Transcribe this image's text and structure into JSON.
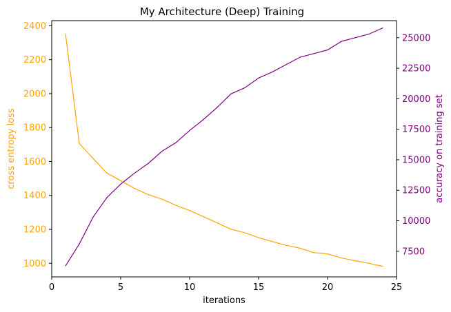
{
  "chart_data": {
    "type": "line",
    "title": "My Architecture (Deep) Training",
    "xlabel": "iterations",
    "ylabel_left": "cross entropy loss",
    "ylabel_right": "accuracy on training set",
    "xlim": [
      0,
      25
    ],
    "ylim_left": [
      920,
      2430
    ],
    "ylim_right": [
      5400,
      26400
    ],
    "xticks": [
      0,
      5,
      10,
      15,
      20,
      25
    ],
    "yticks_left": [
      1000,
      1200,
      1400,
      1600,
      1800,
      2000,
      2200,
      2400
    ],
    "yticks_right": [
      7500,
      10000,
      12500,
      15000,
      17500,
      20000,
      22500,
      25000
    ],
    "grid": false,
    "legend": "none",
    "x": [
      1,
      2,
      3,
      4,
      5,
      6,
      7,
      8,
      9,
      10,
      11,
      12,
      13,
      14,
      15,
      16,
      17,
      18,
      19,
      20,
      21,
      22,
      23,
      24
    ],
    "series": [
      {
        "axis": "left",
        "color": "#FFA500",
        "values": [
          2352,
          1706,
          1618,
          1532,
          1487,
          1441,
          1405,
          1378,
          1342,
          1311,
          1275,
          1238,
          1201,
          1180,
          1151,
          1128,
          1106,
          1089,
          1063,
          1055,
          1032,
          1015,
          1000,
          982
        ]
      },
      {
        "axis": "right",
        "color": "#800080",
        "values": [
          6300,
          8100,
          10300,
          11900,
          13000,
          13900,
          14700,
          15700,
          16400,
          17400,
          18300,
          19300,
          20400,
          20900,
          21700,
          22200,
          22800,
          23400,
          23700,
          24000,
          24700,
          25000,
          25300,
          25800
        ]
      }
    ],
    "colors": {
      "left_axis": "#FFA500",
      "right_axis": "#800080",
      "text": "#000000"
    }
  }
}
